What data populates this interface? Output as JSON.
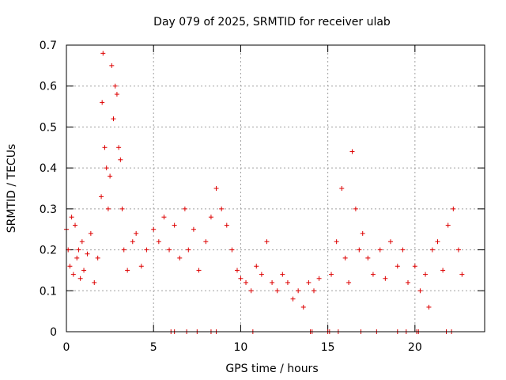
{
  "chart_data": {
    "type": "scatter",
    "title": "Day 079 of 2025, SRMTID for receiver ulab",
    "xlabel": "GPS time / hours",
    "ylabel": "SRMTID / TECUs",
    "xlim": [
      0,
      24
    ],
    "ylim": [
      0,
      0.7
    ],
    "xticks": [
      0,
      5,
      10,
      15,
      20
    ],
    "xtick_labels": [
      "0",
      "5",
      "10",
      "15",
      "20"
    ],
    "yticks": [
      0,
      0.1,
      0.2,
      0.3,
      0.4,
      0.5,
      0.6,
      0.7
    ],
    "ytick_labels": [
      "0",
      "0.1",
      "0.2",
      "0.3",
      "0.4",
      "0.5",
      "0.6",
      "0.7"
    ],
    "grid": true,
    "marker": "+",
    "series": [
      {
        "name": "SRMTID",
        "color": "#dd0000",
        "x": [
          0.0,
          0.1,
          0.2,
          0.3,
          0.4,
          0.5,
          0.6,
          0.7,
          0.8,
          0.9,
          1.0,
          1.2,
          1.4,
          1.6,
          1.8,
          2.0,
          2.05,
          2.1,
          2.2,
          2.3,
          2.4,
          2.5,
          2.6,
          2.7,
          2.8,
          2.9,
          3.0,
          3.1,
          3.2,
          3.3,
          3.5,
          3.8,
          4.0,
          4.3,
          4.6,
          5.0,
          5.3,
          5.6,
          5.9,
          6.2,
          6.5,
          6.8,
          7.0,
          7.3,
          7.6,
          8.0,
          8.3,
          8.6,
          8.9,
          9.2,
          9.5,
          9.8,
          10.0,
          10.3,
          10.6,
          10.9,
          11.2,
          11.5,
          11.8,
          12.1,
          12.4,
          12.7,
          13.0,
          13.3,
          13.6,
          13.9,
          14.2,
          14.5,
          15.2,
          15.5,
          15.8,
          16.0,
          16.2,
          16.4,
          16.6,
          16.8,
          17.0,
          17.3,
          17.6,
          18.0,
          18.3,
          18.6,
          19.0,
          19.3,
          19.6,
          20.0,
          20.3,
          20.6,
          20.8,
          21.0,
          21.3,
          21.6,
          21.9,
          22.2,
          22.5,
          22.7,
          6.0,
          6.2,
          6.9,
          7.5,
          8.3,
          8.6,
          10.7,
          14.0,
          14.1,
          15.0,
          15.1,
          15.6,
          16.9,
          17.8,
          19.0,
          19.5,
          20.1,
          20.2,
          21.8,
          22.1
        ],
        "y": [
          0.25,
          0.2,
          0.16,
          0.28,
          0.14,
          0.26,
          0.18,
          0.2,
          0.13,
          0.22,
          0.15,
          0.19,
          0.24,
          0.12,
          0.18,
          0.33,
          0.56,
          0.68,
          0.45,
          0.4,
          0.3,
          0.38,
          0.65,
          0.52,
          0.6,
          0.58,
          0.45,
          0.42,
          0.3,
          0.2,
          0.15,
          0.22,
          0.24,
          0.16,
          0.2,
          0.25,
          0.22,
          0.28,
          0.2,
          0.26,
          0.18,
          0.3,
          0.2,
          0.25,
          0.15,
          0.22,
          0.28,
          0.35,
          0.3,
          0.26,
          0.2,
          0.15,
          0.13,
          0.12,
          0.1,
          0.16,
          0.14,
          0.22,
          0.12,
          0.1,
          0.14,
          0.12,
          0.08,
          0.1,
          0.06,
          0.12,
          0.1,
          0.13,
          0.14,
          0.22,
          0.35,
          0.18,
          0.12,
          0.44,
          0.3,
          0.2,
          0.24,
          0.18,
          0.14,
          0.2,
          0.13,
          0.22,
          0.16,
          0.2,
          0.12,
          0.16,
          0.1,
          0.14,
          0.06,
          0.2,
          0.22,
          0.15,
          0.26,
          0.3,
          0.2,
          0.14,
          0.0,
          0.0,
          0.0,
          0.0,
          0.0,
          0.0,
          0.0,
          0.0,
          0.0,
          0.0,
          0.0,
          0.0,
          0.0,
          0.0,
          0.0,
          0.0,
          0.0,
          0.0,
          0.0,
          0.0
        ]
      }
    ]
  }
}
